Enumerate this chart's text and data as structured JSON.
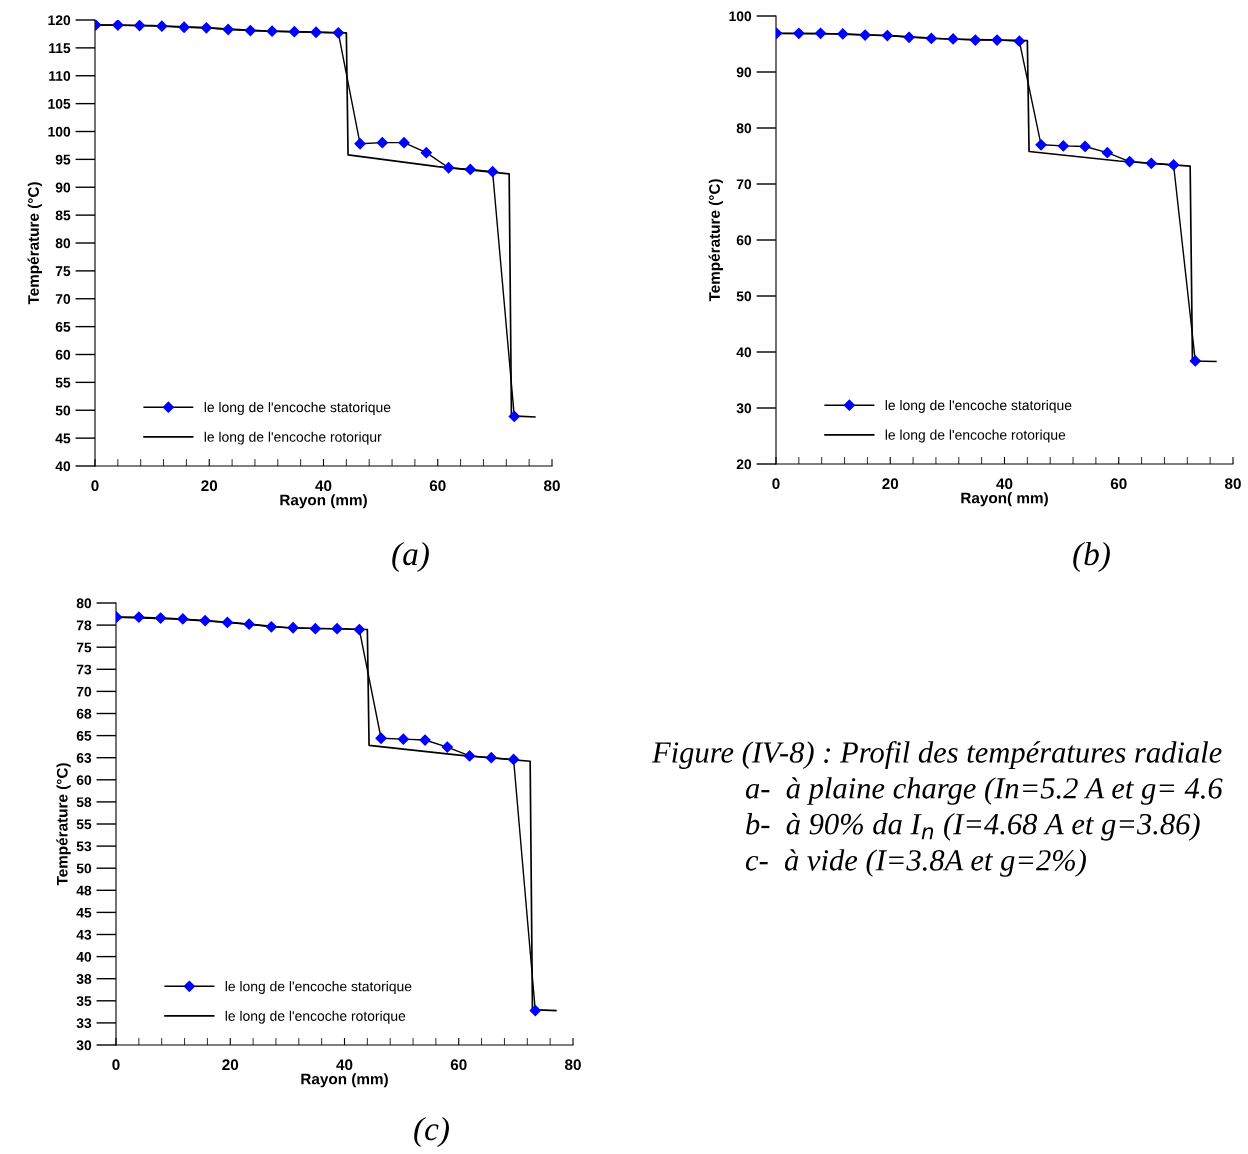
{
  "chart_data": [
    {
      "type": "line",
      "xlabel": "Rayon (mm)",
      "ylabel": "Température (°C)",
      "xlim": [
        0,
        80
      ],
      "xticks": [
        0,
        20,
        40,
        60,
        80
      ],
      "ylim": [
        40,
        120
      ],
      "yticks": [
        40,
        45,
        50,
        55,
        60,
        65,
        70,
        75,
        80,
        85,
        90,
        95,
        100,
        105,
        110,
        115,
        120
      ],
      "legend": "bottom left",
      "annotations": [
        "(a)"
      ],
      "series": [
        {
          "name": "le long de l'encoche statorique",
          "color": "#0000ff",
          "marker": "diamond",
          "x": [
            0.1,
            4,
            7.8,
            11.7,
            15.6,
            19.5,
            23.3,
            27.2,
            31,
            34.9,
            38.7,
            42.6,
            46.4,
            50.3,
            54.1,
            58,
            61.9,
            65.7,
            69.6,
            73.4
          ],
          "values": [
            119.1,
            119.1,
            119.0,
            118.9,
            118.7,
            118.6,
            118.3,
            118.1,
            118.0,
            117.9,
            117.8,
            117.7,
            97.8,
            98.0,
            98.0,
            96.2,
            93.5,
            93.2,
            92.8,
            48.9
          ]
        },
        {
          "name": "le long de l'encoche rotoriqur",
          "color": "#000000",
          "marker": "none",
          "x": [
            0,
            10,
            20,
            30,
            44,
            44.3,
            60,
            72.5,
            72.9,
            77
          ],
          "values": [
            119.1,
            119.0,
            118.6,
            118.0,
            117.7,
            95.8,
            93.7,
            92.4,
            49.0,
            48.8
          ]
        }
      ]
    },
    {
      "type": "line",
      "xlabel": "Rayon( mm)",
      "ylabel": "Température (°C)",
      "xlim": [
        0,
        80
      ],
      "xticks": [
        0,
        20,
        40,
        60,
        80
      ],
      "ylim": [
        20,
        100
      ],
      "yticks": [
        20,
        30,
        40,
        50,
        60,
        70,
        80,
        90,
        100
      ],
      "legend": "bottom left",
      "annotations": [
        "(b)"
      ],
      "series": [
        {
          "name": "le long de l'encoche statorique",
          "color": "#0000ff",
          "marker": "diamond",
          "x": [
            0.1,
            4,
            7.8,
            11.7,
            15.6,
            19.5,
            23.3,
            27.2,
            31,
            34.9,
            38.7,
            42.6,
            46.4,
            50.3,
            54.1,
            58,
            61.9,
            65.7,
            69.6,
            73.4
          ],
          "values": [
            96.9,
            96.9,
            96.9,
            96.8,
            96.6,
            96.5,
            96.2,
            96.0,
            95.9,
            95.7,
            95.7,
            95.5,
            77.0,
            76.8,
            76.7,
            75.6,
            74.0,
            73.7,
            73.4,
            38.4
          ]
        },
        {
          "name": "le long de l'encoche rotorique",
          "color": "#000000",
          "marker": "none",
          "x": [
            0,
            10,
            20,
            30,
            44,
            44.3,
            60,
            72.5,
            72.9,
            77
          ],
          "values": [
            96.9,
            96.8,
            96.5,
            95.9,
            95.6,
            75.8,
            74.1,
            73.2,
            38.4,
            38.3
          ]
        }
      ]
    },
    {
      "type": "line",
      "xlabel": "Rayon (mm)",
      "ylabel": "Température (°C)",
      "xlim": [
        0,
        80
      ],
      "xticks": [
        0,
        20,
        40,
        60,
        80
      ],
      "ylim": [
        30,
        80
      ],
      "yticks": [
        30,
        {
          "value": 32.5,
          "label": "33"
        },
        35,
        {
          "value": 37.5,
          "label": "38"
        },
        40,
        {
          "value": 42.5,
          "label": "43"
        },
        45,
        {
          "value": 47.5,
          "label": "48"
        },
        50,
        {
          "value": 52.5,
          "label": "53"
        },
        55,
        {
          "value": 57.5,
          "label": "58"
        },
        60,
        {
          "value": 62.5,
          "label": "63"
        },
        65,
        {
          "value": 67.5,
          "label": "68"
        },
        70,
        {
          "value": 72.5,
          "label": "73"
        },
        75,
        {
          "value": 77.5,
          "label": "78"
        },
        80
      ],
      "legend": "bottom left",
      "annotations": [
        "(c)"
      ],
      "series": [
        {
          "name": "le long de l'encoche statorique",
          "color": "#0000ff",
          "marker": "diamond",
          "x": [
            0.1,
            4,
            7.8,
            11.7,
            15.6,
            19.5,
            23.3,
            27.2,
            31,
            34.9,
            38.7,
            42.6,
            46.4,
            50.3,
            54.1,
            58,
            61.9,
            65.7,
            69.6,
            73.4
          ],
          "values": [
            78.4,
            78.4,
            78.3,
            78.2,
            78.0,
            77.8,
            77.6,
            77.3,
            77.2,
            77.1,
            77.1,
            77.0,
            64.7,
            64.6,
            64.5,
            63.7,
            62.7,
            62.5,
            62.3,
            33.9
          ]
        },
        {
          "name": "le long de l'encoche rotorique",
          "color": "#000000",
          "marker": "none",
          "x": [
            0,
            10,
            20,
            30,
            44,
            44.3,
            60,
            72.5,
            72.9,
            77
          ],
          "values": [
            78.4,
            78.2,
            77.8,
            77.2,
            77.0,
            63.9,
            62.8,
            62.1,
            34.0,
            33.9
          ]
        }
      ]
    },
    {
      "type": "other",
      "annotations": [
        "Figure (IV-8) : Profil des températures radiale",
        "a-  à plaine charge (In=5.2 A et g= 4.6",
        "b-  à 90% da I$_{n}$ (I=4.68 A et g=3.86)",
        "c-  à vide (I=3.8A et g=2%)"
      ]
    }
  ]
}
